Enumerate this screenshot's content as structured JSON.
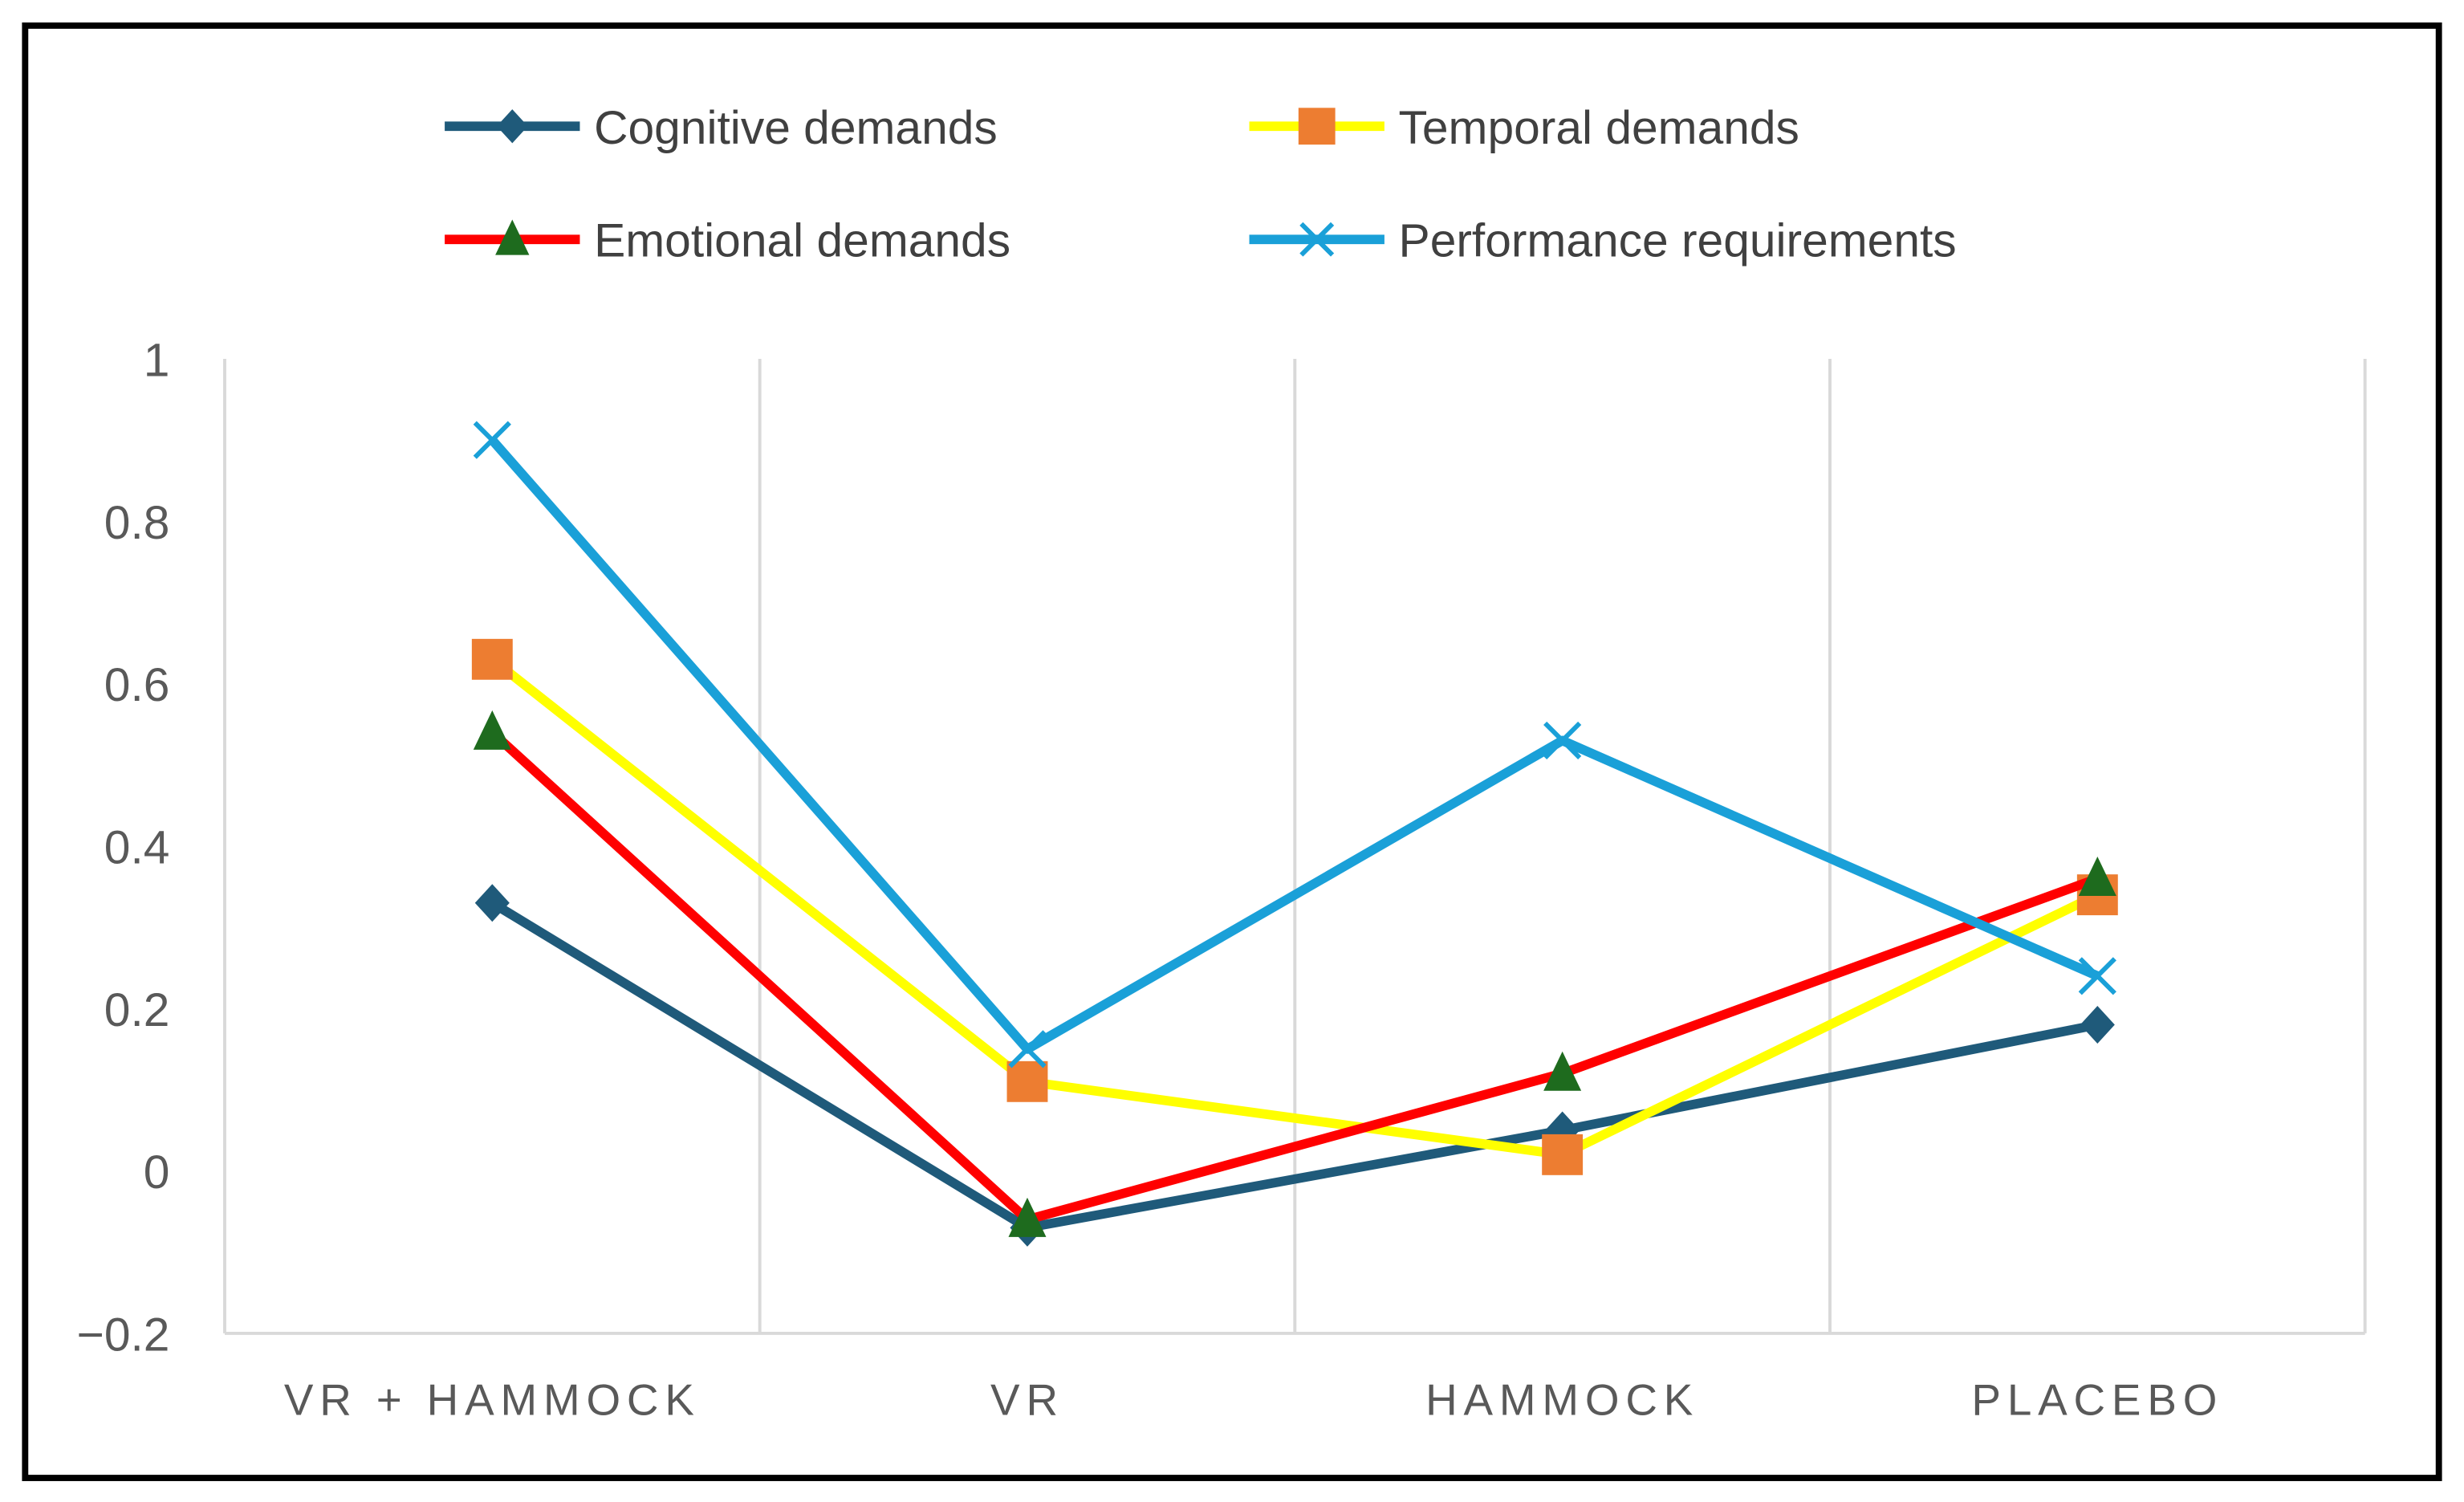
{
  "chart_data": {
    "type": "line",
    "title": "",
    "xlabel": "",
    "ylabel": "",
    "categories": [
      "VR + HAMMOCK",
      "VR",
      "HAMMOCK",
      "PLACEBO"
    ],
    "ylim": [
      -0.2,
      1
    ],
    "yticks": [
      -0.2,
      0,
      0.2,
      0.4,
      0.6,
      0.8,
      1
    ],
    "ytick_labels": [
      "−0.2",
      "0",
      "0.2",
      "0.4",
      "0.6",
      "0.8",
      "1"
    ],
    "grid": "vertical",
    "legend_position": "top",
    "series": [
      {
        "name": "Cognitive demands",
        "color": "#1F5A7A",
        "marker": "diamond",
        "marker_color": "#1F5A7A",
        "values": [
          0.33,
          -0.07,
          0.05,
          0.18
        ]
      },
      {
        "name": "Temporal demands",
        "color": "#FFFF00",
        "marker": "square",
        "marker_color": "#ED7D31",
        "values": [
          0.63,
          0.11,
          0.02,
          0.34
        ]
      },
      {
        "name": "Emotional demands",
        "color": "#FF0000",
        "marker": "triangle",
        "marker_color": "#1E6B1E",
        "values": [
          0.54,
          -0.06,
          0.12,
          0.36
        ]
      },
      {
        "name": "Performance requirements",
        "color": "#1AA0D8",
        "marker": "x",
        "marker_color": "#1AA0D8",
        "values": [
          0.9,
          0.15,
          0.53,
          0.24
        ]
      }
    ]
  }
}
